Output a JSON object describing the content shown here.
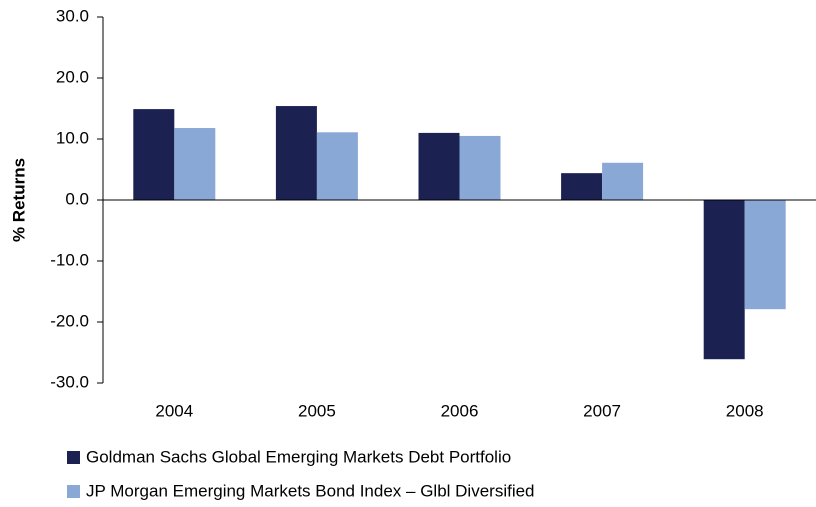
{
  "chart_data": {
    "type": "bar",
    "y_label": "% Returns",
    "categories": [
      "2004",
      "2005",
      "2006",
      "2007",
      "2008"
    ],
    "series": [
      {
        "name": "Goldman Sachs Global Emerging Markets Debt Portfolio",
        "color": "#1b2150",
        "values": [
          14.9,
          15.4,
          11.0,
          4.4,
          -26.1
        ]
      },
      {
        "name": "JP Morgan Emerging Markets Bond Index – Glbl Diversified",
        "color": "#8aa8d6",
        "values": [
          11.8,
          11.1,
          10.5,
          6.1,
          -17.9
        ]
      }
    ],
    "ylim": [
      -30,
      30
    ],
    "yticks": [
      {
        "value": -30,
        "label": "-30.0"
      },
      {
        "value": -20,
        "label": "-20.0"
      },
      {
        "value": -10,
        "label": "-10.0"
      },
      {
        "value": 0,
        "label": "0.0"
      },
      {
        "value": 10,
        "label": "10.0"
      },
      {
        "value": 20,
        "label": "20.0"
      },
      {
        "value": 30,
        "label": "30.0"
      }
    ],
    "grid": false,
    "legend": "bottom"
  }
}
